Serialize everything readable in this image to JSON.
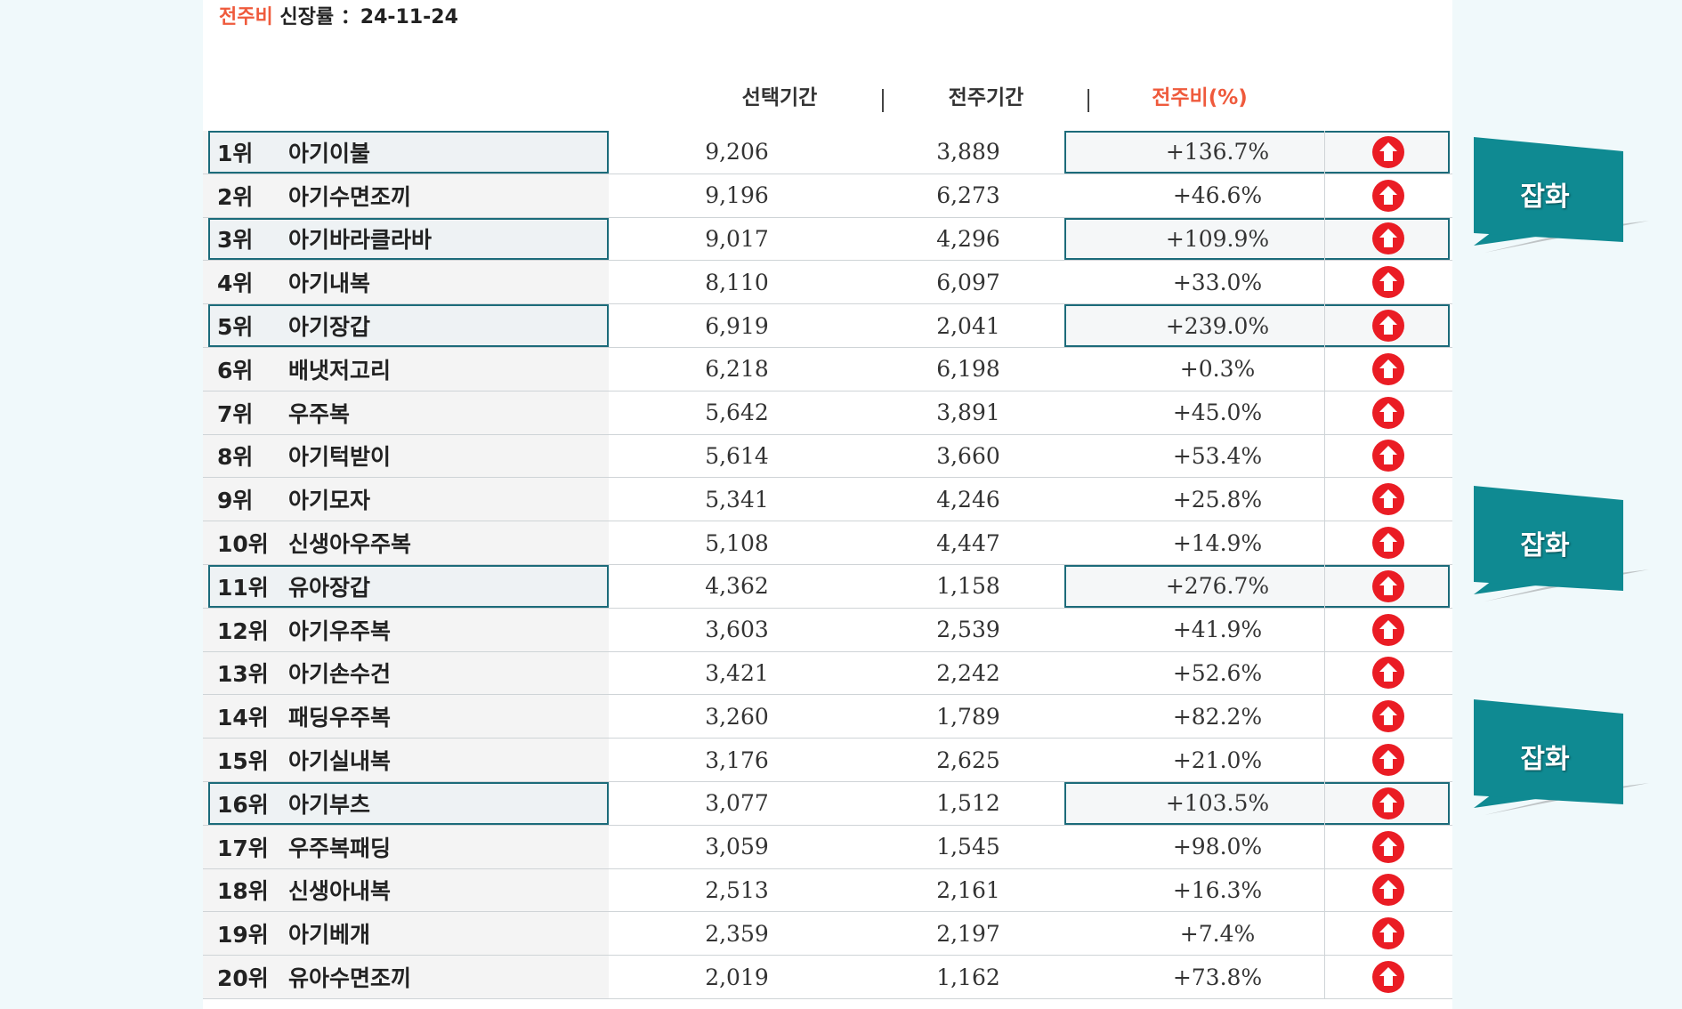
{
  "title": {
    "accent": "전주비",
    "text": "신장률 ：24-11-24"
  },
  "headers": {
    "selected": "선택기간",
    "previous": "전주기간",
    "ratio": "전주비(%)",
    "separator": "|"
  },
  "colors": {
    "accent": "#ef5a3c",
    "highlight_border": "#1c6b7a",
    "callout": "#0f8a92",
    "up_arrow": "#ea1c24"
  },
  "callout_label": "잡화",
  "rows": [
    {
      "rank": "1위",
      "name": "아기이불",
      "selected": "9,206",
      "previous": "3,889",
      "ratio": "+136.7%",
      "highlighted": true
    },
    {
      "rank": "2위",
      "name": "아기수면조끼",
      "selected": "9,196",
      "previous": "6,273",
      "ratio": "+46.6%",
      "highlighted": false
    },
    {
      "rank": "3위",
      "name": "아기바라클라바",
      "selected": "9,017",
      "previous": "4,296",
      "ratio": "+109.9%",
      "highlighted": true
    },
    {
      "rank": "4위",
      "name": "아기내복",
      "selected": "8,110",
      "previous": "6,097",
      "ratio": "+33.0%",
      "highlighted": false
    },
    {
      "rank": "5위",
      "name": "아기장갑",
      "selected": "6,919",
      "previous": "2,041",
      "ratio": "+239.0%",
      "highlighted": true
    },
    {
      "rank": "6위",
      "name": "배냇저고리",
      "selected": "6,218",
      "previous": "6,198",
      "ratio": "+0.3%",
      "highlighted": false
    },
    {
      "rank": "7위",
      "name": "우주복",
      "selected": "5,642",
      "previous": "3,891",
      "ratio": "+45.0%",
      "highlighted": false
    },
    {
      "rank": "8위",
      "name": "아기턱받이",
      "selected": "5,614",
      "previous": "3,660",
      "ratio": "+53.4%",
      "highlighted": false
    },
    {
      "rank": "9위",
      "name": "아기모자",
      "selected": "5,341",
      "previous": "4,246",
      "ratio": "+25.8%",
      "highlighted": false
    },
    {
      "rank": "10위",
      "name": "신생아우주복",
      "selected": "5,108",
      "previous": "4,447",
      "ratio": "+14.9%",
      "highlighted": false
    },
    {
      "rank": "11위",
      "name": "유아장갑",
      "selected": "4,362",
      "previous": "1,158",
      "ratio": "+276.7%",
      "highlighted": true
    },
    {
      "rank": "12위",
      "name": "아기우주복",
      "selected": "3,603",
      "previous": "2,539",
      "ratio": "+41.9%",
      "highlighted": false
    },
    {
      "rank": "13위",
      "name": "아기손수건",
      "selected": "3,421",
      "previous": "2,242",
      "ratio": "+52.6%",
      "highlighted": false
    },
    {
      "rank": "14위",
      "name": "패딩우주복",
      "selected": "3,260",
      "previous": "1,789",
      "ratio": "+82.2%",
      "highlighted": false
    },
    {
      "rank": "15위",
      "name": "아기실내복",
      "selected": "3,176",
      "previous": "2,625",
      "ratio": "+21.0%",
      "highlighted": false
    },
    {
      "rank": "16위",
      "name": "아기부츠",
      "selected": "3,077",
      "previous": "1,512",
      "ratio": "+103.5%",
      "highlighted": true
    },
    {
      "rank": "17위",
      "name": "우주복패딩",
      "selected": "3,059",
      "previous": "1,545",
      "ratio": "+98.0%",
      "highlighted": false
    },
    {
      "rank": "18위",
      "name": "신생아내복",
      "selected": "2,513",
      "previous": "2,161",
      "ratio": "+16.3%",
      "highlighted": false
    },
    {
      "rank": "19위",
      "name": "아기베개",
      "selected": "2,359",
      "previous": "2,197",
      "ratio": "+7.4%",
      "highlighted": false
    },
    {
      "rank": "20위",
      "name": "유아수면조끼",
      "selected": "2,019",
      "previous": "1,162",
      "ratio": "+73.8%",
      "highlighted": false
    }
  ]
}
